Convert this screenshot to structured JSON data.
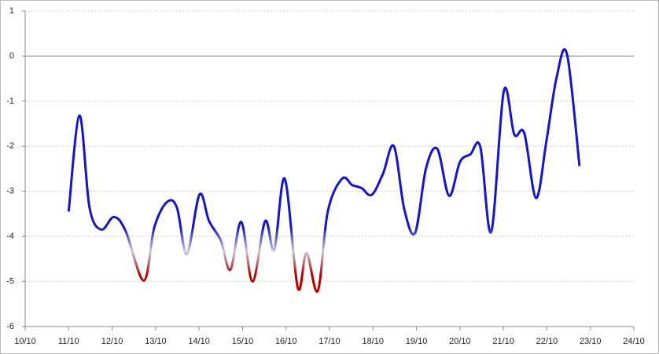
{
  "chart_data": {
    "type": "line",
    "x": [
      11.0,
      11.25,
      11.48,
      11.75,
      12.04,
      12.31,
      12.73,
      12.97,
      13.26,
      13.49,
      13.72,
      14.01,
      14.23,
      14.5,
      14.72,
      14.97,
      15.23,
      15.52,
      15.73,
      15.97,
      16.27,
      16.47,
      16.73,
      16.96,
      17.29,
      17.52,
      17.74,
      17.97,
      18.23,
      18.48,
      18.72,
      18.97,
      19.22,
      19.48,
      19.75,
      20.0,
      20.24,
      20.47,
      20.72,
      21.01,
      21.25,
      21.48,
      21.75,
      21.99,
      22.22,
      22.46,
      22.75
    ],
    "series": [
      {
        "color": "#1414c8",
        "values": [
          -3.45,
          -1.32,
          -3.36,
          -3.85,
          -3.57,
          -3.88,
          -4.98,
          -3.8,
          -3.24,
          -3.36,
          -4.39,
          -3.07,
          -3.66,
          -4.09,
          -4.74,
          -3.68,
          -5.0,
          -3.66,
          -4.3,
          -2.72,
          -5.14,
          -4.37,
          -5.21,
          -3.45,
          -2.72,
          -2.86,
          -2.93,
          -3.08,
          -2.61,
          -2.0,
          -3.4,
          -3.92,
          -2.49,
          -2.06,
          -3.1,
          -2.35,
          -2.18,
          -2.02,
          -3.9,
          -0.77,
          -1.74,
          -1.71,
          -3.15,
          -1.88,
          -0.49,
          0.05,
          -2.44
        ]
      }
    ],
    "xlim": [
      10,
      24
    ],
    "xticks": [
      {
        "value": 10,
        "label": "10/10"
      },
      {
        "value": 11,
        "label": "11/10"
      },
      {
        "value": 12,
        "label": "12/10"
      },
      {
        "value": 13,
        "label": "13/10"
      },
      {
        "value": 14,
        "label": "14/10"
      },
      {
        "value": 15,
        "label": "15/10"
      },
      {
        "value": 16,
        "label": "16/10"
      },
      {
        "value": 17,
        "label": "17/10"
      },
      {
        "value": 18,
        "label": "18/10"
      },
      {
        "value": 19,
        "label": "19/10"
      },
      {
        "value": 20,
        "label": "20/10"
      },
      {
        "value": 21,
        "label": "21/10"
      },
      {
        "value": 22,
        "label": "22/10"
      },
      {
        "value": 23,
        "label": "23/10"
      },
      {
        "value": 24,
        "label": "24/10"
      }
    ],
    "ylim": [
      -6,
      1
    ],
    "yticks": [
      -6,
      -5,
      -4,
      -3,
      -2,
      -1,
      0,
      1
    ],
    "grid": true
  }
}
